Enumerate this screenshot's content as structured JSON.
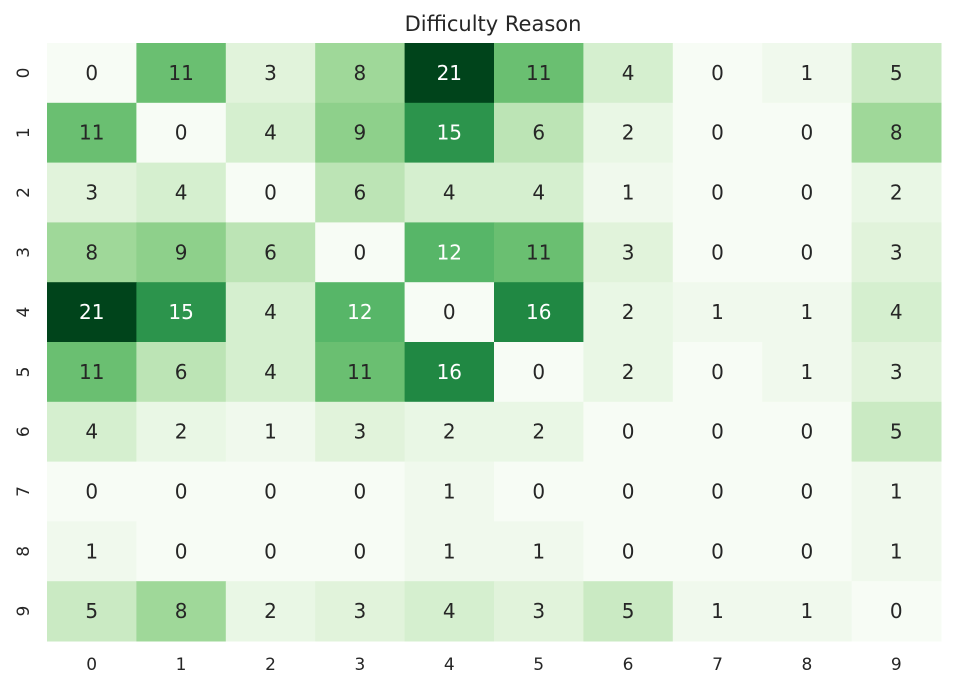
{
  "chart_data": {
    "type": "heatmap",
    "title": "Difficulty Reason",
    "colormap": "Greens",
    "x_labels": [
      "0",
      "1",
      "2",
      "3",
      "4",
      "5",
      "6",
      "7",
      "8",
      "9"
    ],
    "y_labels": [
      "0",
      "1",
      "2",
      "3",
      "4",
      "5",
      "6",
      "7",
      "8",
      "9"
    ],
    "values": [
      [
        0,
        11,
        3,
        8,
        21,
        11,
        4,
        0,
        1,
        5
      ],
      [
        11,
        0,
        4,
        9,
        15,
        6,
        2,
        0,
        0,
        8
      ],
      [
        3,
        4,
        0,
        6,
        4,
        4,
        1,
        0,
        0,
        2
      ],
      [
        8,
        9,
        6,
        0,
        12,
        11,
        3,
        0,
        0,
        3
      ],
      [
        21,
        15,
        4,
        12,
        0,
        16,
        2,
        1,
        1,
        4
      ],
      [
        11,
        6,
        4,
        11,
        16,
        0,
        2,
        0,
        1,
        3
      ],
      [
        4,
        2,
        1,
        3,
        2,
        2,
        0,
        0,
        0,
        5
      ],
      [
        0,
        0,
        0,
        0,
        1,
        0,
        0,
        0,
        0,
        1
      ],
      [
        1,
        0,
        0,
        0,
        1,
        1,
        0,
        0,
        0,
        1
      ],
      [
        5,
        8,
        2,
        3,
        4,
        3,
        5,
        1,
        1,
        0
      ]
    ],
    "vmin": 0,
    "vmax": 21,
    "colorbar": false,
    "annotations": true
  }
}
